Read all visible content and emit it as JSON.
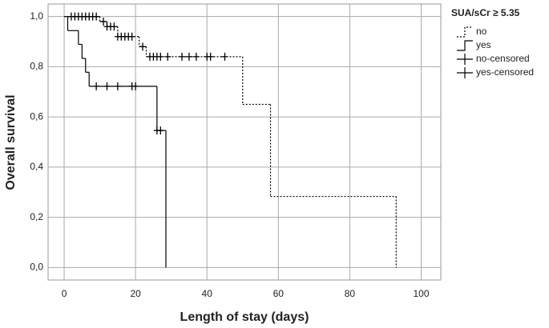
{
  "chart_data": {
    "type": "step",
    "x_label": "Length of stay (days)",
    "y_label": "Overall survival",
    "legend_title": "SUA/sCr ≥ 5.35",
    "xlim": [
      -4.5,
      105.5
    ],
    "ylim": [
      -0.05,
      1.05
    ],
    "xticks": [
      0,
      20,
      40,
      60,
      80,
      100
    ],
    "yticks": [
      {
        "value": 0,
        "label": "0,0"
      },
      {
        "value": 0.2,
        "label": "0,2"
      },
      {
        "value": 0.4,
        "label": "0,4"
      },
      {
        "value": 0.6,
        "label": "0,6"
      },
      {
        "value": 0.8,
        "label": "0,8"
      },
      {
        "value": 1,
        "label": "1,0"
      }
    ],
    "grid": true,
    "series": [
      {
        "name": "no",
        "color": "#000000",
        "line": "dashed",
        "x": [
          0,
          10,
          12,
          15,
          21,
          23,
          50,
          57.8,
          93
        ],
        "values": [
          1,
          0.98,
          0.96,
          0.92,
          0.88,
          0.84,
          0.65,
          0.283,
          0
        ]
      },
      {
        "name": "yes",
        "color": "#000000",
        "line": "solid",
        "x": [
          0,
          1,
          4,
          5,
          6,
          7,
          26,
          28.5
        ],
        "values": [
          1,
          0.944,
          0.889,
          0.833,
          0.778,
          0.722,
          0.546,
          0
        ]
      },
      {
        "name": "no-censored",
        "color": "#000000",
        "marker": "censor",
        "x": [
          2,
          3,
          4,
          5,
          6,
          7,
          8,
          9,
          11,
          12,
          13,
          14,
          15,
          16,
          17,
          18,
          19,
          22,
          24,
          25,
          26,
          27,
          29,
          33,
          35,
          37,
          40,
          41,
          45
        ],
        "values": [
          1,
          1,
          1,
          1,
          1,
          1,
          1,
          1,
          0.98,
          0.96,
          0.96,
          0.96,
          0.92,
          0.92,
          0.92,
          0.92,
          0.92,
          0.88,
          0.84,
          0.84,
          0.84,
          0.84,
          0.84,
          0.84,
          0.84,
          0.84,
          0.84,
          0.84,
          0.84
        ]
      },
      {
        "name": "yes-censored",
        "color": "#000000",
        "marker": "censor",
        "x": [
          9,
          12,
          15,
          19,
          20,
          26,
          27
        ],
        "values": [
          0.722,
          0.722,
          0.722,
          0.722,
          0.722,
          0.546,
          0.546
        ]
      }
    ]
  }
}
